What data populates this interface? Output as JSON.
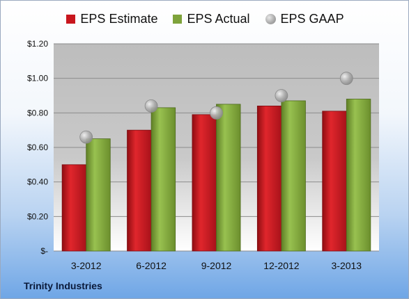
{
  "company_label": "Trinity Industries",
  "chart_data": {
    "type": "bar",
    "title": "",
    "xlabel": "",
    "ylabel": "",
    "categories": [
      "3-2012",
      "6-2012",
      "9-2012",
      "12-2012",
      "3-2013"
    ],
    "series": [
      {
        "name": "EPS Estimate",
        "kind": "bar",
        "color": "#c8161d",
        "values": [
          0.5,
          0.7,
          0.79,
          0.84,
          0.81
        ]
      },
      {
        "name": "EPS Actual",
        "kind": "bar",
        "color": "#7ea33b",
        "values": [
          0.65,
          0.83,
          0.85,
          0.87,
          0.88
        ]
      },
      {
        "name": "EPS GAAP",
        "kind": "marker",
        "color": "#a6a6a6",
        "values": [
          0.66,
          0.84,
          0.8,
          0.9,
          1.0
        ]
      }
    ],
    "ylim": [
      0,
      1.2
    ],
    "yticks": [
      0,
      0.2,
      0.4,
      0.6,
      0.8,
      1.0,
      1.2
    ],
    "ytick_labels": [
      "$-",
      "$0.20",
      "$0.40",
      "$0.60",
      "$0.80",
      "$1.00",
      "$1.20"
    ],
    "grid": true,
    "legend_position": "top"
  }
}
